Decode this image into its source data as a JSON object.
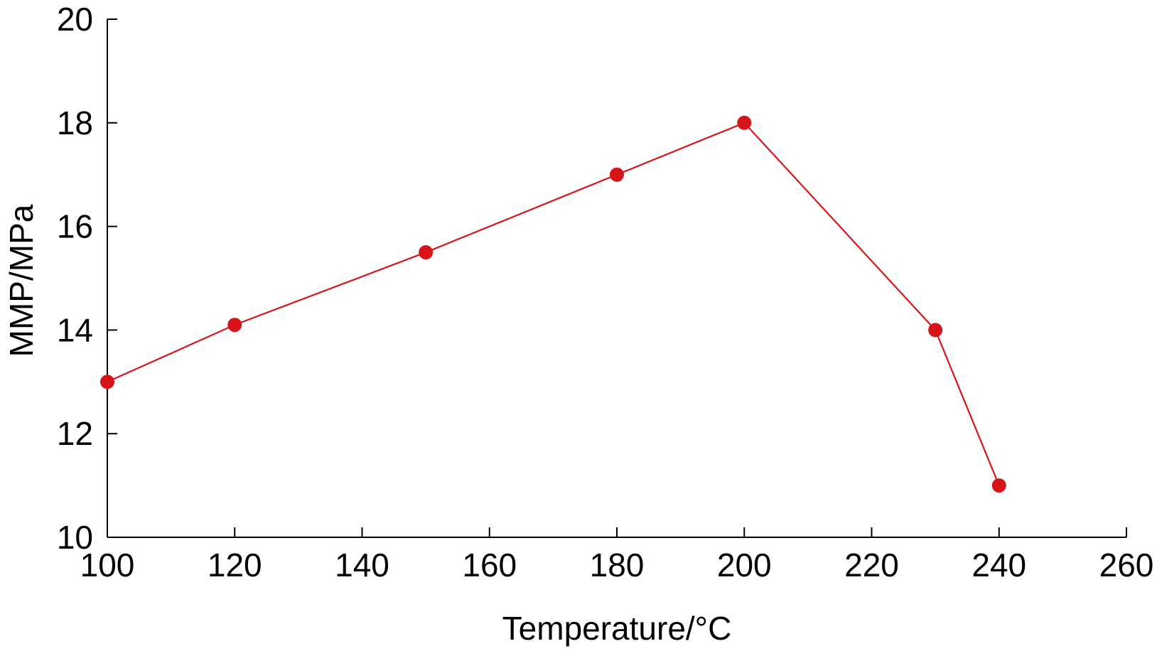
{
  "chart_data": {
    "type": "line",
    "title": "",
    "xlabel": "Temperature/°C",
    "ylabel": "MMP/MPa",
    "xlim": [
      100,
      260
    ],
    "ylim": [
      10,
      20
    ],
    "x_ticks": [
      100,
      120,
      140,
      160,
      180,
      200,
      220,
      240,
      260
    ],
    "y_ticks": [
      10,
      12,
      14,
      16,
      18,
      20
    ],
    "grid": false,
    "legend": "none",
    "series": [
      {
        "color": "#d7141a",
        "marker": "circle",
        "points": [
          {
            "x": 100,
            "y": 13.0
          },
          {
            "x": 120,
            "y": 14.1
          },
          {
            "x": 150,
            "y": 15.5
          },
          {
            "x": 180,
            "y": 17.0
          },
          {
            "x": 200,
            "y": 18.0
          },
          {
            "x": 230,
            "y": 14.0
          },
          {
            "x": 240,
            "y": 11.0
          }
        ]
      }
    ]
  }
}
